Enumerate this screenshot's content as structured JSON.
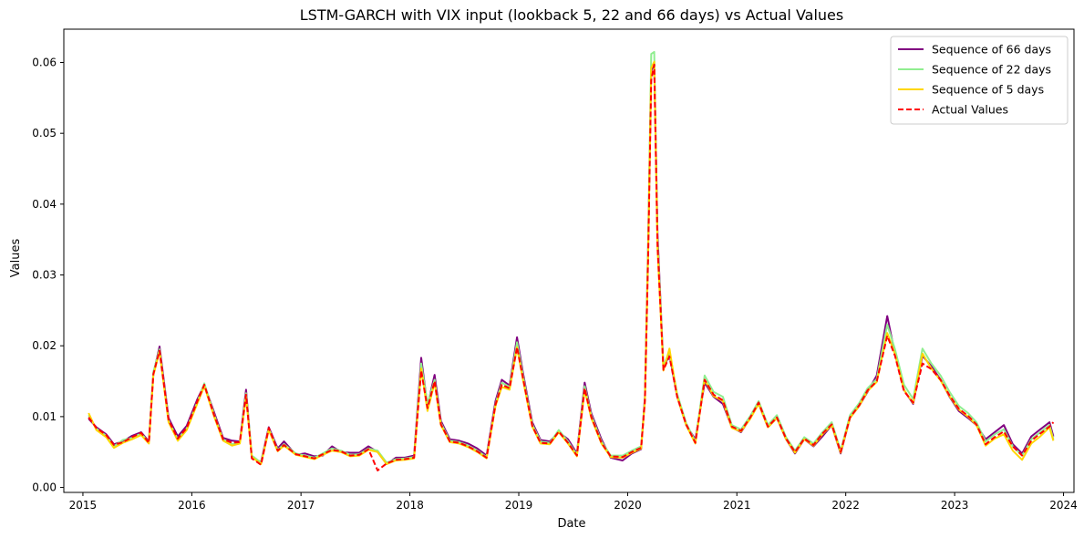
{
  "chart_data": {
    "type": "line",
    "title": "LSTM-GARCH with VIX input (lookback 5, 22 and 66 days) vs Actual Values",
    "xlabel": "Date",
    "ylabel": "Values",
    "xlim": [
      "2014-10-29",
      "2024-02-05"
    ],
    "ylim": [
      -0.0007,
      0.0647
    ],
    "x_ticks": [
      "2015",
      "2016",
      "2017",
      "2018",
      "2019",
      "2020",
      "2021",
      "2022",
      "2023",
      "2024"
    ],
    "y_ticks": [
      "0.00",
      "0.01",
      "0.02",
      "0.03",
      "0.04",
      "0.05",
      "0.06"
    ],
    "grid": false,
    "legend_position": "top-right",
    "x": [
      "2015-01-20",
      "2015-02-15",
      "2015-03-20",
      "2015-04-15",
      "2015-05-15",
      "2015-06-15",
      "2015-07-15",
      "2015-08-10",
      "2015-08-25",
      "2015-09-15",
      "2015-10-15",
      "2015-11-15",
      "2015-12-15",
      "2016-01-20",
      "2016-02-12",
      "2016-03-15",
      "2016-04-15",
      "2016-05-15",
      "2016-06-10",
      "2016-07-01",
      "2016-07-20",
      "2016-08-20",
      "2016-09-15",
      "2016-10-15",
      "2016-11-05",
      "2016-12-15",
      "2017-01-15",
      "2017-02-15",
      "2017-03-15",
      "2017-04-15",
      "2017-05-15",
      "2017-06-15",
      "2017-07-15",
      "2017-08-15",
      "2017-09-15",
      "2017-10-15",
      "2017-11-15",
      "2017-12-15",
      "2018-01-15",
      "2018-02-08",
      "2018-03-01",
      "2018-03-25",
      "2018-04-15",
      "2018-05-15",
      "2018-06-15",
      "2018-07-15",
      "2018-08-15",
      "2018-09-15",
      "2018-10-15",
      "2018-11-05",
      "2018-12-01",
      "2018-12-26",
      "2019-01-15",
      "2019-02-15",
      "2019-03-15",
      "2019-04-15",
      "2019-05-15",
      "2019-06-15",
      "2019-07-15",
      "2019-08-10",
      "2019-09-01",
      "2019-10-05",
      "2019-11-05",
      "2019-12-15",
      "2020-01-15",
      "2020-02-15",
      "2020-02-28",
      "2020-03-10",
      "2020-03-20",
      "2020-03-30",
      "2020-04-10",
      "2020-04-30",
      "2020-05-20",
      "2020-06-15",
      "2020-07-15",
      "2020-08-15",
      "2020-09-15",
      "2020-10-15",
      "2020-11-15",
      "2020-12-15",
      "2021-01-15",
      "2021-02-15",
      "2021-03-15",
      "2021-04-15",
      "2021-05-15",
      "2021-06-15",
      "2021-07-15",
      "2021-08-15",
      "2021-09-15",
      "2021-10-15",
      "2021-11-15",
      "2021-12-15",
      "2022-01-15",
      "2022-02-15",
      "2022-03-15",
      "2022-04-15",
      "2022-05-20",
      "2022-06-15",
      "2022-07-15",
      "2022-08-15",
      "2022-09-15",
      "2022-10-15",
      "2022-11-15",
      "2022-12-15",
      "2023-01-15",
      "2023-02-15",
      "2023-03-15",
      "2023-04-15",
      "2023-05-15",
      "2023-06-15",
      "2023-07-15",
      "2023-08-15",
      "2023-09-15",
      "2023-10-15",
      "2023-11-15",
      "2023-11-28"
    ],
    "series": [
      {
        "name": "Sequence of 66 days",
        "color": "#800080",
        "dash": "solid",
        "values": [
          0.0097,
          0.0085,
          0.0075,
          0.0061,
          0.0065,
          0.0073,
          0.0078,
          0.0065,
          0.016,
          0.0199,
          0.0098,
          0.0072,
          0.0087,
          0.0125,
          0.0145,
          0.0107,
          0.007,
          0.0066,
          0.0065,
          0.0138,
          0.0042,
          0.0036,
          0.0085,
          0.0055,
          0.0065,
          0.0046,
          0.0048,
          0.0044,
          0.0045,
          0.0058,
          0.005,
          0.0049,
          0.0049,
          0.0058,
          0.005,
          0.0033,
          0.0042,
          0.0042,
          0.0045,
          0.0183,
          0.0115,
          0.0159,
          0.0094,
          0.0068,
          0.0066,
          0.0062,
          0.0055,
          0.0045,
          0.0122,
          0.0152,
          0.0144,
          0.0212,
          0.0162,
          0.0092,
          0.0067,
          0.0065,
          0.0078,
          0.0068,
          0.0048,
          0.0148,
          0.0105,
          0.0068,
          0.0042,
          0.0038,
          0.0048,
          0.0054,
          0.0128,
          0.0345,
          0.0588,
          0.0598,
          0.0359,
          0.0168,
          0.0188,
          0.0128,
          0.0088,
          0.0068,
          0.0148,
          0.0128,
          0.0118,
          0.0085,
          0.0078,
          0.0098,
          0.0118,
          0.0085,
          0.0098,
          0.0068,
          0.0048,
          0.0068,
          0.0058,
          0.0072,
          0.0088,
          0.0048,
          0.0098,
          0.0115,
          0.0135,
          0.0158,
          0.0242,
          0.0188,
          0.0138,
          0.0118,
          0.0186,
          0.0171,
          0.0152,
          0.0128,
          0.0108,
          0.0098,
          0.0088,
          0.0068,
          0.0078,
          0.0088,
          0.0061,
          0.0048,
          0.0072,
          0.0082,
          0.0092,
          0.0072
        ]
      },
      {
        "name": "Sequence of 22 days",
        "color": "#90ee90",
        "dash": "solid",
        "values": [
          0.0102,
          0.0083,
          0.0073,
          0.0058,
          0.0067,
          0.007,
          0.0076,
          0.0064,
          0.0163,
          0.0195,
          0.0094,
          0.0068,
          0.0083,
          0.0121,
          0.0147,
          0.0104,
          0.0068,
          0.0061,
          0.0064,
          0.0133,
          0.0045,
          0.0035,
          0.0083,
          0.0053,
          0.0061,
          0.0048,
          0.0045,
          0.0042,
          0.0048,
          0.0055,
          0.0052,
          0.0046,
          0.0047,
          0.0055,
          0.0052,
          0.0035,
          0.004,
          0.0041,
          0.0043,
          0.0175,
          0.0118,
          0.0152,
          0.0091,
          0.0066,
          0.0064,
          0.0059,
          0.0052,
          0.0043,
          0.0118,
          0.0148,
          0.0142,
          0.0205,
          0.0158,
          0.0089,
          0.0065,
          0.0063,
          0.0081,
          0.0065,
          0.0046,
          0.0143,
          0.0102,
          0.0065,
          0.0045,
          0.0045,
          0.0052,
          0.0058,
          0.0125,
          0.0352,
          0.0612,
          0.0615,
          0.0349,
          0.0171,
          0.0192,
          0.0132,
          0.0091,
          0.0065,
          0.0158,
          0.0135,
          0.0128,
          0.0088,
          0.0082,
          0.0101,
          0.0122,
          0.0088,
          0.0102,
          0.0071,
          0.0052,
          0.0071,
          0.0062,
          0.0078,
          0.0092,
          0.0052,
          0.0102,
          0.0119,
          0.014,
          0.0153,
          0.023,
          0.0195,
          0.0145,
          0.0125,
          0.0196,
          0.0175,
          0.0158,
          0.0135,
          0.0115,
          0.0105,
          0.0092,
          0.0065,
          0.0075,
          0.0082,
          0.0058,
          0.0045,
          0.0068,
          0.0078,
          0.0088,
          0.0068
        ]
      },
      {
        "name": "Sequence of 5 days",
        "color": "#ffd700",
        "dash": "solid",
        "values": [
          0.0105,
          0.0081,
          0.0071,
          0.0056,
          0.0063,
          0.0068,
          0.0074,
          0.0062,
          0.0158,
          0.0192,
          0.0092,
          0.0066,
          0.0081,
          0.0119,
          0.0143,
          0.0101,
          0.0066,
          0.0059,
          0.0062,
          0.0128,
          0.0043,
          0.0033,
          0.0081,
          0.0051,
          0.0059,
          0.0046,
          0.0043,
          0.004,
          0.0046,
          0.0052,
          0.005,
          0.0044,
          0.0045,
          0.0053,
          0.005,
          0.0033,
          0.0038,
          0.0039,
          0.0041,
          0.0168,
          0.0108,
          0.0148,
          0.0088,
          0.0064,
          0.0062,
          0.0057,
          0.005,
          0.0041,
          0.0115,
          0.0142,
          0.0138,
          0.0198,
          0.0152,
          0.0086,
          0.0062,
          0.0061,
          0.0078,
          0.0062,
          0.0044,
          0.0138,
          0.0098,
          0.0062,
          0.0043,
          0.0042,
          0.0049,
          0.0055,
          0.0122,
          0.0336,
          0.0592,
          0.0601,
          0.0338,
          0.0165,
          0.0196,
          0.0128,
          0.0088,
          0.0062,
          0.0152,
          0.0129,
          0.0122,
          0.0084,
          0.0079,
          0.0097,
          0.0118,
          0.0085,
          0.0098,
          0.0068,
          0.0049,
          0.0068,
          0.0059,
          0.0075,
          0.0088,
          0.0049,
          0.0098,
          0.0115,
          0.0136,
          0.0149,
          0.0218,
          0.0188,
          0.0138,
          0.0119,
          0.0189,
          0.0168,
          0.0151,
          0.0129,
          0.011,
          0.01,
          0.0088,
          0.0059,
          0.0069,
          0.0075,
          0.0052,
          0.0039,
          0.0062,
          0.0072,
          0.0085,
          0.0066
        ]
      },
      {
        "name": "Actual Values",
        "color": "#ff0000",
        "dash": "dashed",
        "values": [
          0.0099,
          0.0084,
          0.0074,
          0.006,
          0.0064,
          0.0071,
          0.0077,
          0.0063,
          0.016,
          0.0193,
          0.0095,
          0.0069,
          0.0084,
          0.0122,
          0.0145,
          0.0103,
          0.0068,
          0.0063,
          0.0064,
          0.0131,
          0.0041,
          0.0032,
          0.0084,
          0.0052,
          0.006,
          0.0047,
          0.0044,
          0.0041,
          0.0047,
          0.0053,
          0.0051,
          0.0045,
          0.0046,
          0.0054,
          0.0024,
          0.0034,
          0.0039,
          0.004,
          0.0042,
          0.0165,
          0.0112,
          0.015,
          0.0089,
          0.0065,
          0.0063,
          0.0058,
          0.0051,
          0.0042,
          0.0117,
          0.0145,
          0.014,
          0.0198,
          0.0155,
          0.0087,
          0.0063,
          0.0062,
          0.0079,
          0.0063,
          0.0045,
          0.014,
          0.01,
          0.0063,
          0.0044,
          0.0043,
          0.005,
          0.0056,
          0.0123,
          0.033,
          0.0575,
          0.0597,
          0.0342,
          0.0166,
          0.0185,
          0.0128,
          0.0089,
          0.0063,
          0.0152,
          0.0131,
          0.0123,
          0.0086,
          0.008,
          0.0099,
          0.012,
          0.0086,
          0.0099,
          0.0069,
          0.005,
          0.0069,
          0.006,
          0.0076,
          0.0089,
          0.005,
          0.0099,
          0.0116,
          0.0137,
          0.015,
          0.0214,
          0.0186,
          0.0136,
          0.012,
          0.0175,
          0.0167,
          0.0152,
          0.013,
          0.0111,
          0.0101,
          0.0089,
          0.0061,
          0.0071,
          0.0079,
          0.0058,
          0.0045,
          0.0066,
          0.0076,
          0.0086,
          0.0092
        ]
      }
    ]
  }
}
